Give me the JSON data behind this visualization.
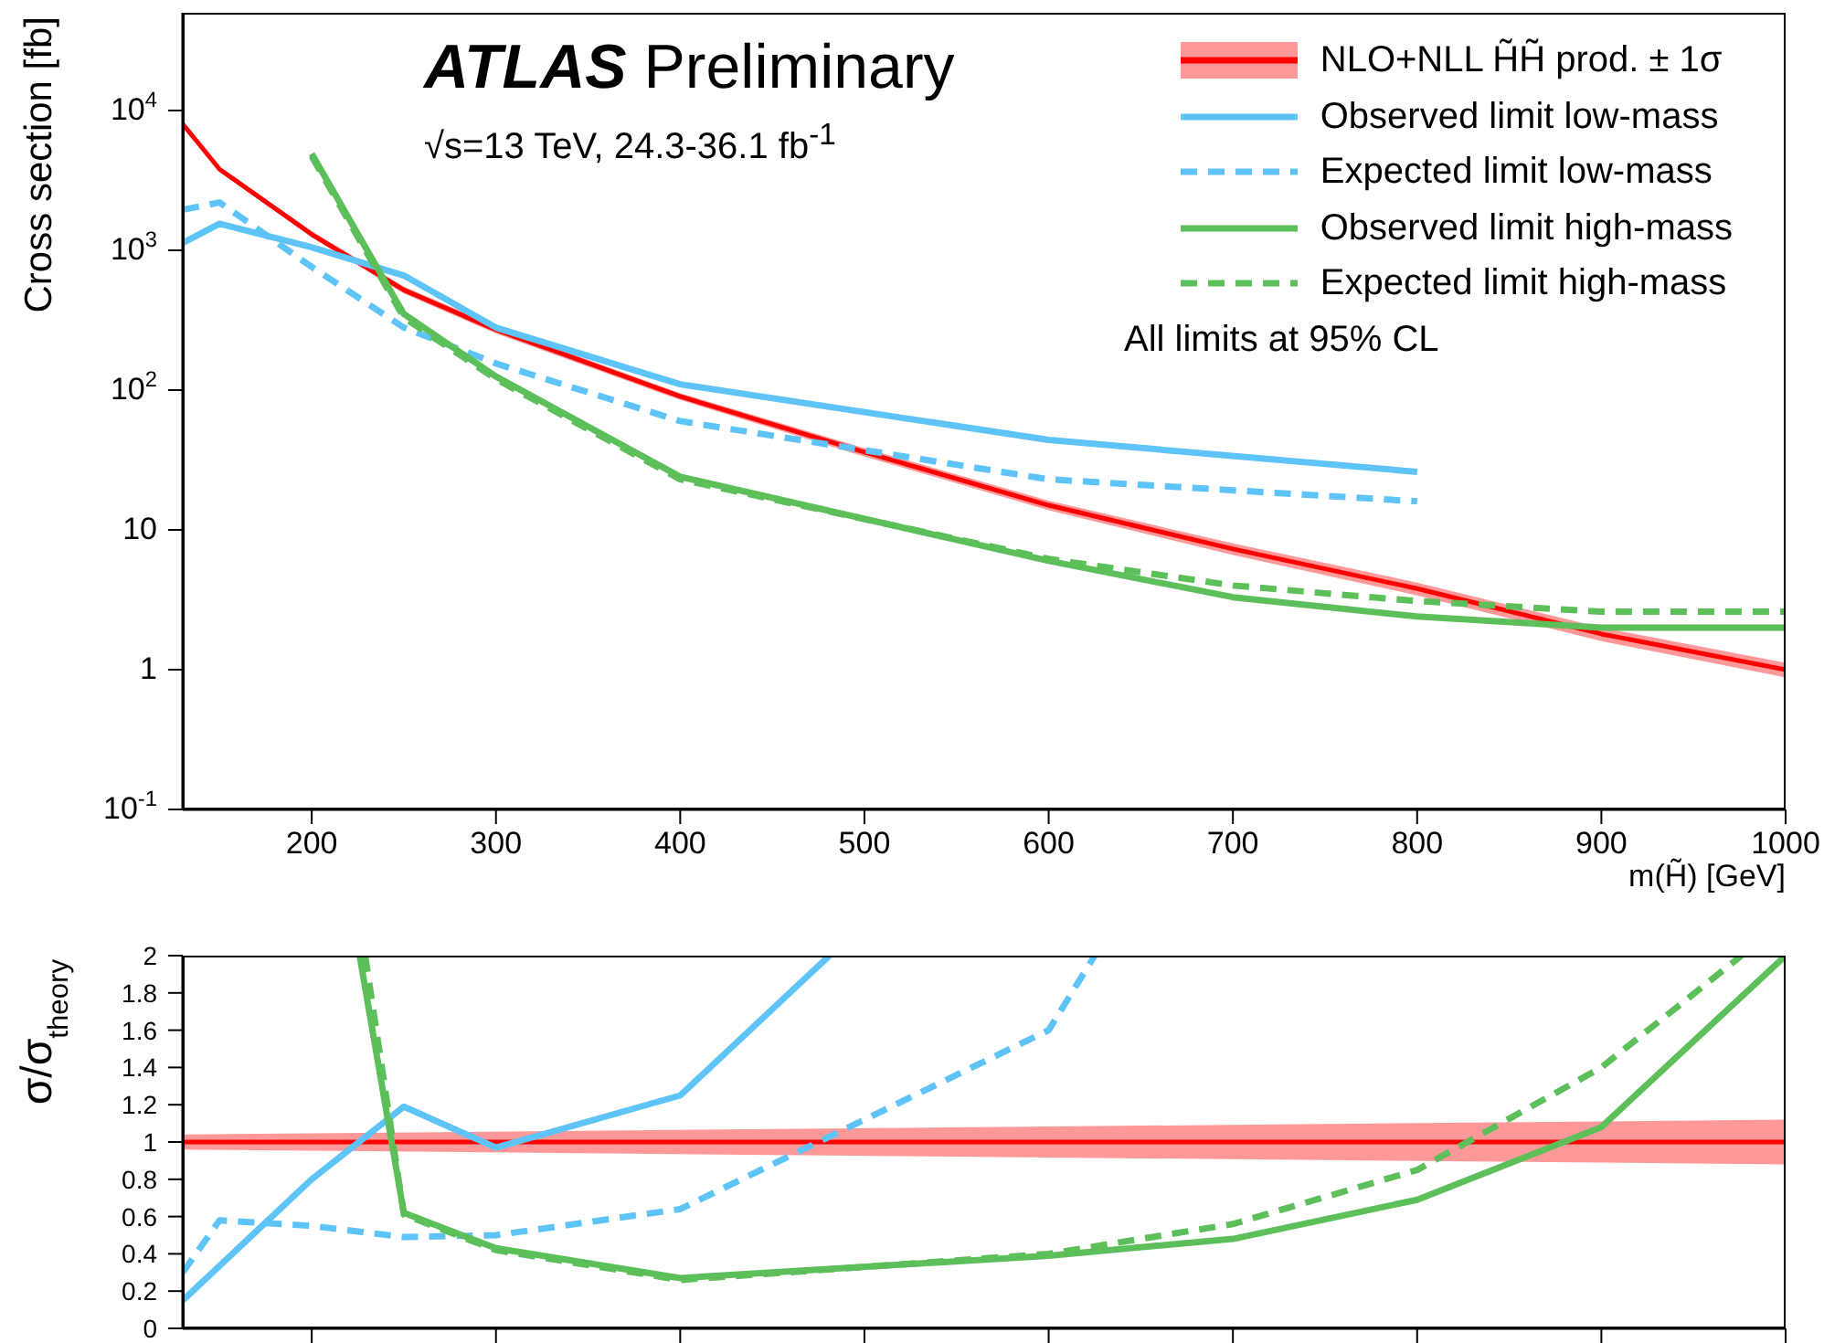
{
  "chart_data": [
    {
      "type": "line",
      "title": "ATLAS Preliminary",
      "subtitle": "√s=13 TeV, 24.3-36.1 fb$^{-1}$",
      "xlabel": "m(H̃) [GeV]",
      "ylabel": "Cross section [fb]",
      "annotations": [
        "All limits at 95% CL"
      ],
      "log": true,
      "legend": "top right",
      "xlim": [
        130,
        1000
      ],
      "xticks": [
        200,
        300,
        400,
        500,
        600,
        700,
        800,
        900,
        1000
      ],
      "ylim": [
        0.1,
        50000
      ],
      "yticks": [
        {
          "value": 0.1,
          "label": "10$^{-1}$"
        },
        1,
        10,
        {
          "value": 100,
          "label": "10$^{2}$"
        },
        {
          "value": 1000,
          "label": "10$^{3}$"
        },
        {
          "value": 10000,
          "label": "10$^{4}$"
        }
      ],
      "series": [
        {
          "name": "NLO+NLL H̃H̃ prod. ± 1σ",
          "color": "#ff0000",
          "line_style": "solid",
          "x": [
            130,
            150,
            200,
            250,
            300,
            400,
            500,
            600,
            700,
            800,
            900,
            1000
          ],
          "values": [
            8000,
            3800,
            1300,
            520,
            270,
            90,
            36,
            15,
            7.3,
            3.8,
            1.8,
            1.0
          ],
          "lower": [
            7700,
            3650,
            1240,
            490,
            254,
            85,
            33.5,
            13.8,
            6.6,
            3.4,
            1.6,
            0.88
          ],
          "upper": [
            8300,
            3950,
            1370,
            550,
            286,
            95,
            38.5,
            16.2,
            8.0,
            4.2,
            2.0,
            1.12
          ]
        },
        {
          "name": "Observed limit low-mass",
          "color": "#5ec4f7",
          "line_style": "solid",
          "x": [
            130,
            150,
            200,
            250,
            300,
            400,
            600,
            800
          ],
          "values": [
            1130,
            1550,
            1050,
            660,
            280,
            110,
            44,
            26
          ]
        },
        {
          "name": "Expected limit low-mass",
          "color": "#5ec4f7",
          "line_style": "dashed",
          "x": [
            130,
            150,
            200,
            250,
            300,
            400,
            600,
            800
          ],
          "values": [
            1950,
            2200,
            760,
            280,
            155,
            60,
            23,
            16
          ]
        },
        {
          "name": "Observed limit high-mass",
          "color": "#5cbf5a",
          "line_style": "solid",
          "x": [
            200,
            250,
            300,
            400,
            600,
            700,
            800,
            900,
            1000
          ],
          "values": [
            4900,
            350,
            125,
            24,
            6,
            3.3,
            2.4,
            2.0,
            2.0
          ]
        },
        {
          "name": "Expected limit high-mass",
          "color": "#5cbf5a",
          "line_style": "dashed",
          "x": [
            200,
            250,
            300,
            400,
            600,
            700,
            800,
            900,
            1000
          ],
          "values": [
            4700,
            330,
            120,
            23,
            6.2,
            4.0,
            3.1,
            2.6,
            2.6
          ]
        }
      ]
    },
    {
      "type": "line",
      "ylabel": "σ/σ$_{theory}$",
      "tick_labels": "y",
      "xlim": [
        130,
        1000
      ],
      "xticks": [
        {
          "value": 200,
          "label": null
        },
        {
          "value": 300,
          "label": null
        },
        {
          "value": 400,
          "label": null
        },
        {
          "value": 500,
          "label": null
        },
        {
          "value": 600,
          "label": null
        },
        {
          "value": 700,
          "label": null
        },
        {
          "value": 800,
          "label": null
        },
        {
          "value": 900,
          "label": null
        },
        {
          "value": 1000,
          "label": null
        }
      ],
      "ylim": [
        0,
        2
      ],
      "yticks": [
        0,
        0.2,
        0.4,
        0.6,
        0.8,
        1,
        1.2,
        1.4,
        1.6,
        1.8,
        2
      ],
      "series": [
        {
          "color": "#ff0000",
          "line_style": "solid",
          "x": [
            130,
            1000
          ],
          "values": [
            1,
            1
          ],
          "lower": [
            0.96,
            0.88
          ],
          "upper": [
            1.04,
            1.12
          ]
        },
        {
          "color": "#5ec4f7",
          "line_style": "solid",
          "x": [
            130,
            200,
            250,
            300,
            400,
            481
          ],
          "values": [
            0.15,
            0.8,
            1.19,
            0.97,
            1.25,
            2
          ]
        },
        {
          "color": "#5ec4f7",
          "line_style": "dashed",
          "x": [
            130,
            150,
            200,
            250,
            300,
            400,
            600,
            625
          ],
          "values": [
            0.3,
            0.58,
            0.55,
            0.49,
            0.5,
            0.64,
            1.6,
            2
          ]
        },
        {
          "color": "#5cbf5a",
          "line_style": "solid",
          "x": [
            226,
            250,
            300,
            400,
            600,
            700,
            800,
            900,
            1000
          ],
          "values": [
            2,
            0.62,
            0.43,
            0.27,
            0.39,
            0.48,
            0.69,
            1.08,
            2
          ]
        },
        {
          "color": "#5cbf5a",
          "line_style": "dashed",
          "x": [
            229,
            250,
            300,
            400,
            600,
            700,
            800,
            900,
            976
          ],
          "values": [
            2,
            0.61,
            0.42,
            0.26,
            0.4,
            0.56,
            0.85,
            1.4,
            2
          ]
        }
      ]
    }
  ]
}
